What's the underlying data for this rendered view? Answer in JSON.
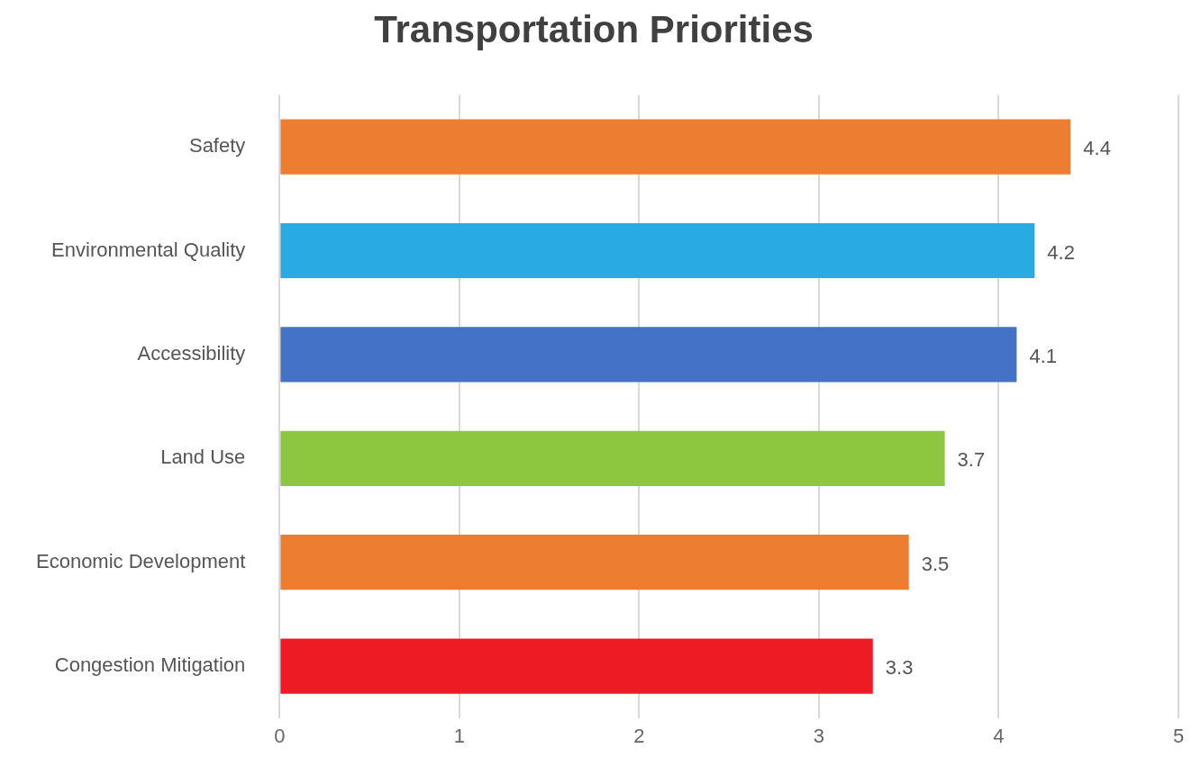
{
  "chart_data": {
    "type": "bar",
    "orientation": "horizontal",
    "title": "Transportation Priorities",
    "categories": [
      "Safety",
      "Environmental Quality",
      "Accessibility",
      "Land Use",
      "Economic Development",
      "Congestion Mitigation"
    ],
    "values": [
      4.4,
      4.2,
      4.1,
      3.7,
      3.5,
      3.3
    ],
    "colors": [
      "#ed7d31",
      "#29abe2",
      "#4472c4",
      "#8dc63f",
      "#ed7d31",
      "#ed1c24"
    ],
    "xlim": [
      0,
      5
    ],
    "xticks": [
      0,
      1,
      2,
      3,
      4,
      5
    ],
    "grid": "x",
    "data_labels": true,
    "legend": false
  }
}
